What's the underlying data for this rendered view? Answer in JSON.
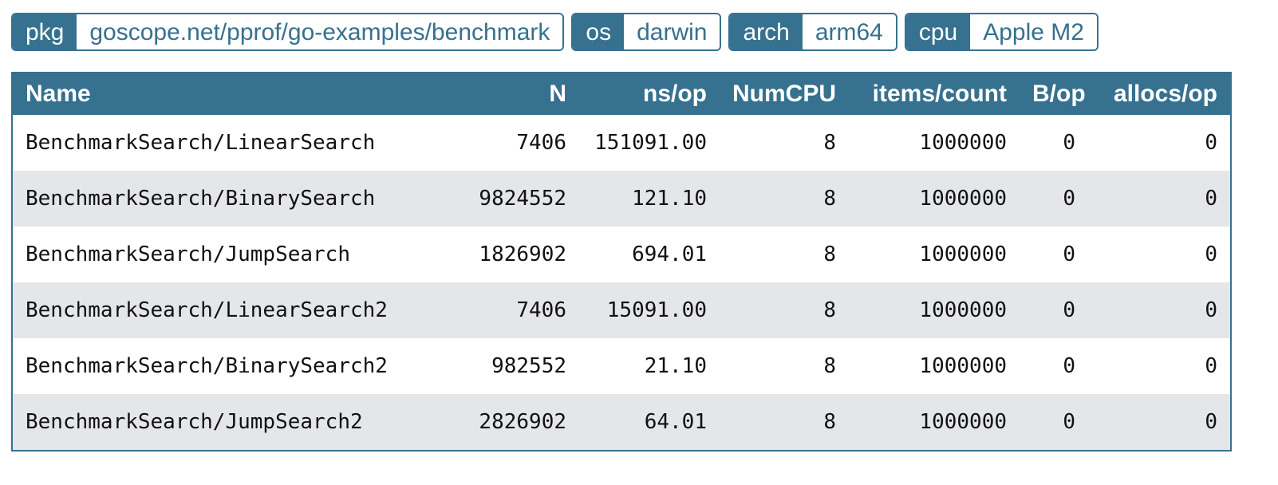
{
  "tags": [
    {
      "key": "pkg",
      "value": "goscope.net/pprof/go-examples/benchmark"
    },
    {
      "key": "os",
      "value": "darwin"
    },
    {
      "key": "arch",
      "value": "arm64"
    },
    {
      "key": "cpu",
      "value": "Apple M2"
    }
  ],
  "table": {
    "headers": [
      "Name",
      "N",
      "ns/op",
      "NumCPU",
      "items/count",
      "B/op",
      "allocs/op"
    ],
    "rows": [
      [
        "BenchmarkSearch/LinearSearch",
        "7406",
        "151091.00",
        "8",
        "1000000",
        "0",
        "0"
      ],
      [
        "BenchmarkSearch/BinarySearch",
        "9824552",
        "121.10",
        "8",
        "1000000",
        "0",
        "0"
      ],
      [
        "BenchmarkSearch/JumpSearch",
        "1826902",
        "694.01",
        "8",
        "1000000",
        "0",
        "0"
      ],
      [
        "BenchmarkSearch/LinearSearch2",
        "7406",
        "15091.00",
        "8",
        "1000000",
        "0",
        "0"
      ],
      [
        "BenchmarkSearch/BinarySearch2",
        "982552",
        "21.10",
        "8",
        "1000000",
        "0",
        "0"
      ],
      [
        "BenchmarkSearch/JumpSearch2",
        "2826902",
        "64.01",
        "8",
        "1000000",
        "0",
        "0"
      ]
    ]
  },
  "colors": {
    "accent": "#36718f",
    "row_alt": "#e5e6ea"
  }
}
